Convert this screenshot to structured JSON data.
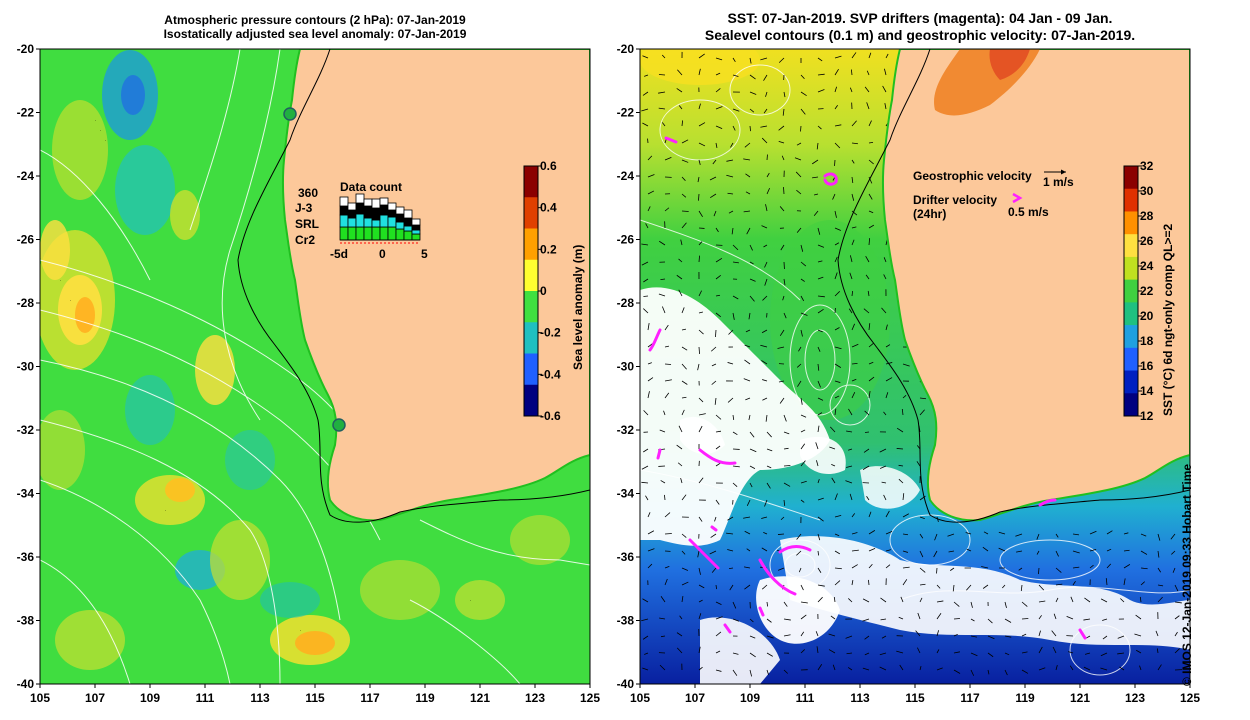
{
  "left_map": {
    "title_line1": "Atmospheric pressure contours (2 hPa): 07-Jan-2019",
    "title_line2": "Isostatically adjusted sea level anomaly: 07-Jan-2019",
    "colorbar_label": "Sea level anomaly (m)",
    "colorbar_ticks": [
      "0.6",
      "0.4",
      "0.2",
      "0",
      "-0.2",
      "-0.4",
      "-0.6"
    ],
    "colorbar_colors": [
      "#8b0000",
      "#e04000",
      "#ffa000",
      "#ffff30",
      "#40e040",
      "#20c0c0",
      "#2060ff",
      "#000080"
    ]
  },
  "data_count": {
    "title": "Data count",
    "satellites": [
      {
        "label": "360",
        "color": "#000000"
      },
      {
        "label": "J-3",
        "color": "#000000"
      },
      {
        "label": "SRL",
        "color": "#20e0e0"
      },
      {
        "label": "Cr2",
        "color": "#20e020"
      }
    ],
    "xticks": [
      "-5d",
      "0",
      "5"
    ]
  },
  "right_map": {
    "title_line1": "SST: 07-Jan-2019. SVP drifters (magenta): 04 Jan - 09 Jan.",
    "title_line2": "Sealevel contours (0.1 m) and geostrophic velocity: 07-Jan-2019.",
    "legend_geo": "Geostrophic velocity",
    "legend_geo_value": "1 m/s",
    "legend_drifter": "Drifter velocity",
    "legend_drifter_sub": "(24hr)",
    "legend_drifter_value": "0.5 m/s",
    "colorbar_label": "SST (°C) 6d ngt-only comp QL>=2",
    "colorbar_ticks": [
      "32",
      "30",
      "28",
      "26",
      "24",
      "22",
      "20",
      "18",
      "16",
      "14",
      "12"
    ],
    "colorbar_colors": [
      "#8b0000",
      "#e03000",
      "#ff9000",
      "#ffe040",
      "#c0e020",
      "#40d040",
      "#20c080",
      "#20a0e0",
      "#2060ff",
      "#0020c0",
      "#000080"
    ]
  },
  "axes": {
    "lat_ticks": [
      "-20",
      "-22",
      "-24",
      "-26",
      "-28",
      "-30",
      "-32",
      "-34",
      "-36",
      "-38",
      "-40"
    ],
    "lon_ticks": [
      "105",
      "107",
      "109",
      "111",
      "113",
      "115",
      "117",
      "119",
      "121",
      "123",
      "125"
    ],
    "colors": {
      "ocean": "#40dd40",
      "land": "#fcc89a",
      "drifter": "#ff20ff"
    }
  },
  "footer": "© IMOS 12-Jan-2019 09:33 Hobart Time"
}
